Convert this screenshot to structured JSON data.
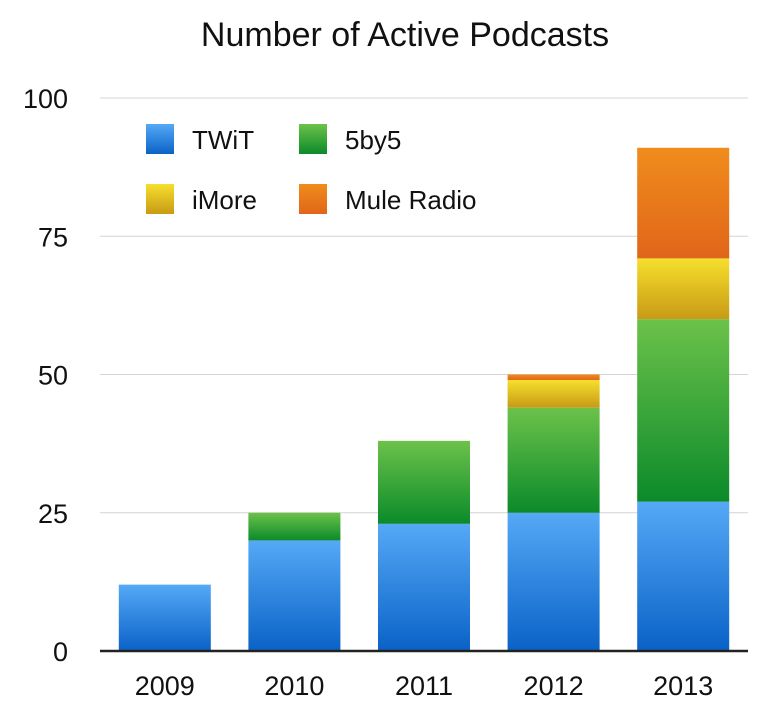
{
  "chart_data": {
    "type": "bar",
    "stacked": true,
    "title": "Number of Active Podcasts",
    "xlabel": "",
    "ylabel": "",
    "categories": [
      "2009",
      "2010",
      "2011",
      "2012",
      "2013"
    ],
    "ylim": [
      0,
      100
    ],
    "yticks": [
      "0",
      "25",
      "50",
      "75",
      "100"
    ],
    "grid": true,
    "legend_position": "top-left",
    "series": [
      {
        "name": "TWiT",
        "values": [
          12,
          20,
          23,
          25,
          27
        ],
        "color_top": "#55a9f6",
        "color_bottom": "#0a62c7"
      },
      {
        "name": "5by5",
        "values": [
          0,
          5,
          15,
          19,
          33
        ],
        "color_top": "#6cc24a",
        "color_bottom": "#0b8a2a"
      },
      {
        "name": "iMore",
        "values": [
          0,
          0,
          0,
          5,
          11
        ],
        "color_top": "#f6df2c",
        "color_bottom": "#c89a16"
      },
      {
        "name": "Mule Radio",
        "values": [
          0,
          0,
          0,
          1,
          20
        ],
        "color_top": "#f08c1c",
        "color_bottom": "#e0661a"
      }
    ]
  }
}
